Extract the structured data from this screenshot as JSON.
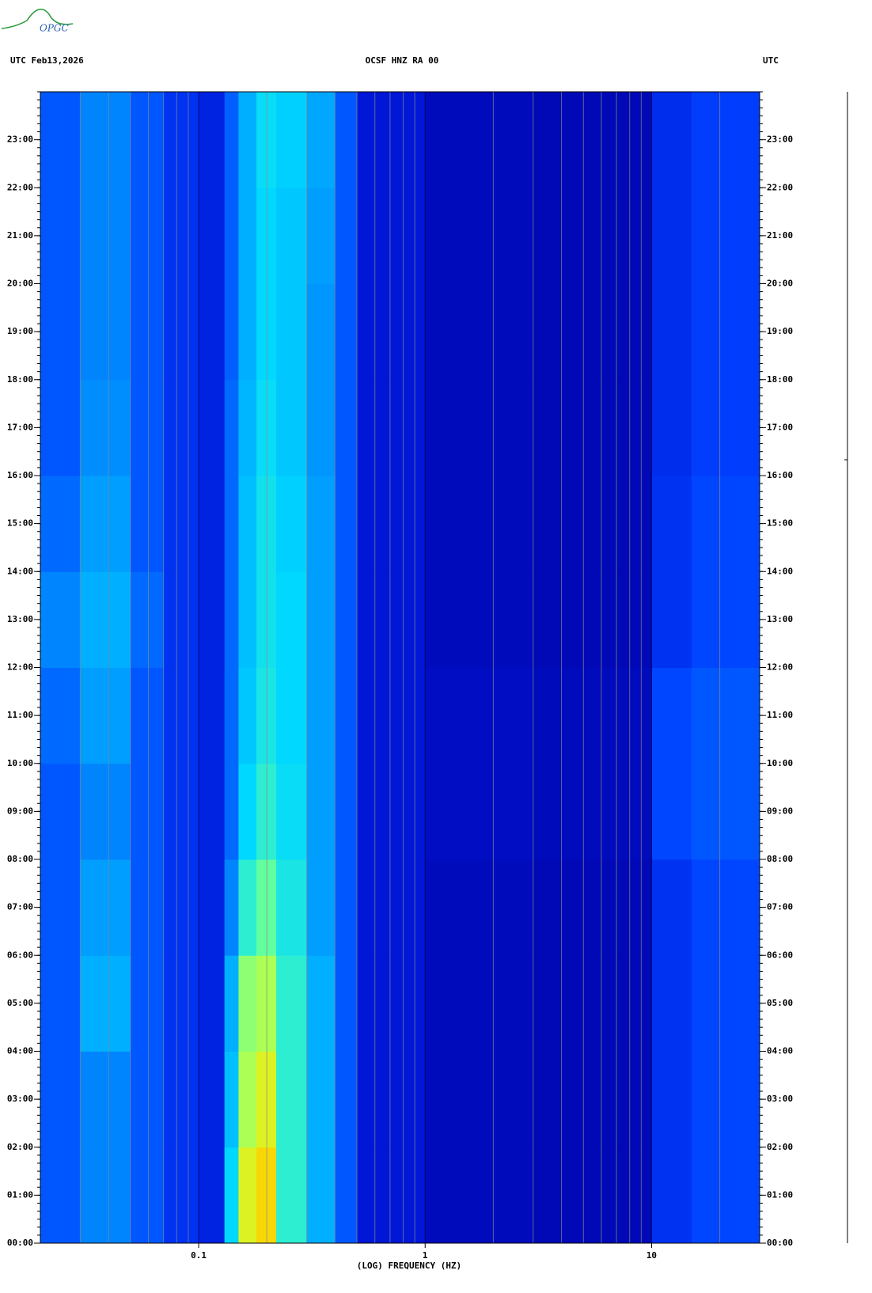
{
  "chart_data": {
    "type": "heatmap",
    "logo_text": "OPGC",
    "title_left": "UTC  Feb13,2026",
    "title": "OCSF HNZ RA 00",
    "title_right": "UTC",
    "xlabel": "(LOG) FREQUENCY (HZ)",
    "xscale": "log",
    "xlim": [
      0.02,
      30
    ],
    "xticks": [
      0.1,
      1,
      10
    ],
    "minor_grid": true,
    "ylim": [
      0,
      24
    ],
    "yticks": [
      {
        "value": 0,
        "label": "00:00"
      },
      {
        "value": 1,
        "label": "01:00"
      },
      {
        "value": 2,
        "label": "02:00"
      },
      {
        "value": 3,
        "label": "03:00"
      },
      {
        "value": 4,
        "label": "04:00"
      },
      {
        "value": 5,
        "label": "05:00"
      },
      {
        "value": 6,
        "label": "06:00"
      },
      {
        "value": 7,
        "label": "07:00"
      },
      {
        "value": 8,
        "label": "08:00"
      },
      {
        "value": 9,
        "label": "09:00"
      },
      {
        "value": 10,
        "label": "10:00"
      },
      {
        "value": 11,
        "label": "11:00"
      },
      {
        "value": 12,
        "label": "12:00"
      },
      {
        "value": 13,
        "label": "13:00"
      },
      {
        "value": 14,
        "label": "14:00"
      },
      {
        "value": 15,
        "label": "15:00"
      },
      {
        "value": 16,
        "label": "16:00"
      },
      {
        "value": 17,
        "label": "17:00"
      },
      {
        "value": 18,
        "label": "18:00"
      },
      {
        "value": 19,
        "label": "19:00"
      },
      {
        "value": 20,
        "label": "20:00"
      },
      {
        "value": 21,
        "label": "21:00"
      },
      {
        "value": 22,
        "label": "22:00"
      },
      {
        "value": 23,
        "label": "23:00"
      }
    ],
    "x_bins": [
      0.02,
      0.03,
      0.05,
      0.07,
      0.1,
      0.13,
      0.15,
      0.18,
      0.22,
      0.3,
      0.4,
      0.5,
      1,
      3,
      10,
      15,
      30
    ],
    "y_bins": [
      0,
      2,
      4,
      6,
      8,
      10,
      12,
      14,
      16,
      18,
      20,
      22,
      24
    ],
    "zlim": [
      0,
      7
    ],
    "colors": [
      "#000090",
      "#0010d0",
      "#0040ff",
      "#0090ff",
      "#00d8ff",
      "#50ffb0",
      "#d0ff30",
      "#ffd000",
      "#ff0000"
    ],
    "z": [
      [
        2,
        2.5,
        2,
        1.5,
        1.2,
        3.5,
        5.5,
        6,
        4,
        3,
        2,
        1,
        0.6,
        0.5,
        1.5,
        1.8
      ],
      [
        2,
        2.5,
        2,
        1.5,
        1.2,
        3.2,
        5,
        5.5,
        4,
        3,
        2,
        1,
        0.6,
        0.5,
        1.5,
        1.8
      ],
      [
        2,
        3,
        2,
        1.5,
        1.2,
        3,
        4.8,
        5,
        4,
        3,
        2,
        1,
        0.6,
        0.5,
        1.5,
        1.8
      ],
      [
        2,
        2.8,
        2,
        1.5,
        1.2,
        2.5,
        4,
        4.5,
        3.8,
        2.8,
        2,
        1,
        0.6,
        0.5,
        1.5,
        1.8
      ],
      [
        2,
        2.5,
        2,
        1.5,
        1.2,
        2.2,
        3.5,
        4,
        3.6,
        2.8,
        2,
        1,
        0.7,
        0.6,
        1.8,
        2
      ],
      [
        2.2,
        2.8,
        2,
        1.5,
        1.2,
        2.2,
        3.3,
        3.8,
        3.5,
        2.8,
        2,
        1,
        0.7,
        0.6,
        1.8,
        2
      ],
      [
        2.5,
        3,
        2.2,
        1.5,
        1.2,
        2.2,
        3.2,
        3.7,
        3.5,
        2.8,
        2,
        1,
        0.6,
        0.5,
        1.5,
        1.8
      ],
      [
        2.2,
        2.8,
        2,
        1.5,
        1.2,
        2.2,
        3.2,
        3.7,
        3.4,
        2.8,
        2,
        1,
        0.6,
        0.5,
        1.5,
        1.8
      ],
      [
        2,
        2.6,
        2,
        1.5,
        1.2,
        2.2,
        3.1,
        3.6,
        3.3,
        2.7,
        2,
        1,
        0.6,
        0.5,
        1.4,
        1.7
      ],
      [
        2,
        2.5,
        2,
        1.5,
        1.2,
        2.1,
        3,
        3.5,
        3.3,
        2.7,
        2,
        1,
        0.6,
        0.5,
        1.4,
        1.7
      ],
      [
        2,
        2.5,
        2,
        1.5,
        1.2,
        2.1,
        3,
        3.5,
        3.3,
        2.8,
        2,
        1,
        0.6,
        0.5,
        1.4,
        1.7
      ],
      [
        2,
        2.5,
        2,
        1.5,
        1.2,
        2.1,
        3,
        3.6,
        3.4,
        2.9,
        2,
        1,
        0.6,
        0.5,
        1.4,
        1.7
      ]
    ]
  }
}
